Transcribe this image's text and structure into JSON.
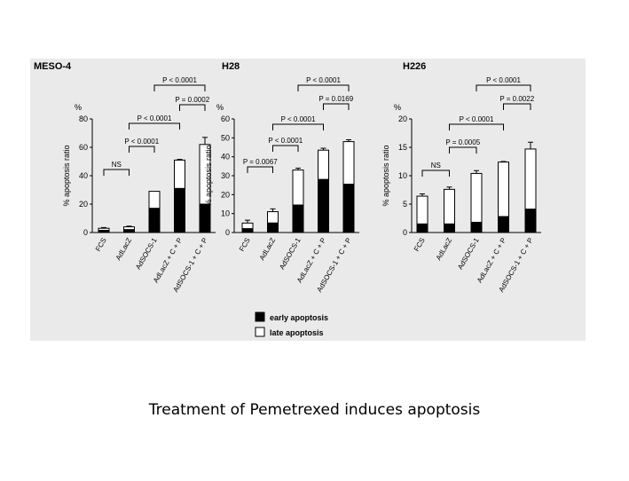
{
  "caption": "Treatment of Pemetrexed induces apoptosis",
  "colors": {
    "panel_background": "#eaeaea",
    "early": "#000000",
    "late": "#ffffff",
    "outline": "#000000"
  },
  "legend": {
    "early_label": "early apoptosis",
    "late_label": "late apoptosis"
  },
  "chart_data": [
    {
      "type": "bar",
      "stacked": true,
      "title": "MESO-4",
      "ylabel": "% apoptosis ratio",
      "unit_label": "%",
      "ylim": [
        0,
        80
      ],
      "yticks": [
        0,
        20,
        40,
        60,
        80
      ],
      "categories": [
        "FCS",
        "AdLacZ",
        "AdSOCS-1",
        "AdLacZ + C + P",
        "AdSOCS-1 + C + P"
      ],
      "series": [
        {
          "name": "early apoptosis",
          "values": [
            1.5,
            2,
            17,
            31,
            20
          ]
        },
        {
          "name": "late apoptosis",
          "values": [
            1.5,
            2,
            12,
            20,
            42
          ]
        }
      ],
      "error": [
        0.5,
        0.5,
        0,
        0.5,
        5
      ],
      "comparisons": [
        {
          "from": 0,
          "to": 1,
          "label": "NS"
        },
        {
          "from": 1,
          "to": 2,
          "label": "P < 0.0001"
        },
        {
          "from": 1,
          "to": 3,
          "label": "P < 0.0001"
        },
        {
          "from": 3,
          "to": 4,
          "label": "P = 0.0002"
        },
        {
          "from": 2,
          "to": 4,
          "label": "P < 0.0001"
        }
      ]
    },
    {
      "type": "bar",
      "stacked": true,
      "title": "H28",
      "ylabel": "% apoptosis ratio",
      "unit_label": "%",
      "ylim": [
        0,
        60
      ],
      "yticks": [
        0,
        10,
        20,
        30,
        40,
        50,
        60
      ],
      "categories": [
        "FCS",
        "AdLacZ",
        "AdSOCS-1",
        "AdLacZ + C + P",
        "AdSOCS-1 + C + P"
      ],
      "series": [
        {
          "name": "early apoptosis",
          "values": [
            2,
            5,
            14.5,
            28,
            25.5
          ]
        },
        {
          "name": "late apoptosis",
          "values": [
            3,
            6,
            18.5,
            15.5,
            22.5
          ]
        }
      ],
      "error": [
        1.5,
        1.5,
        1,
        1,
        1
      ],
      "comparisons": [
        {
          "from": 0,
          "to": 1,
          "label": "P = 0.0067"
        },
        {
          "from": 1,
          "to": 2,
          "label": "P < 0.0001"
        },
        {
          "from": 1,
          "to": 3,
          "label": "P < 0.0001"
        },
        {
          "from": 3,
          "to": 4,
          "label": "P = 0.0169"
        },
        {
          "from": 2,
          "to": 4,
          "label": "P < 0.0001"
        }
      ]
    },
    {
      "type": "bar",
      "stacked": true,
      "title": "H226",
      "ylabel": "% apoptosis ratio",
      "unit_label": "%",
      "ylim": [
        0,
        20
      ],
      "yticks": [
        0,
        5,
        10,
        15,
        20
      ],
      "categories": [
        "FCS",
        "AdLacZ",
        "AdSOCS-1",
        "AdLacZ + C + P",
        "AdSOCS-1 + C + P"
      ],
      "series": [
        {
          "name": "early apoptosis",
          "values": [
            1.5,
            1.5,
            1.8,
            2.8,
            4.1
          ]
        },
        {
          "name": "late apoptosis",
          "values": [
            4.9,
            6.1,
            8.6,
            9.6,
            10.6
          ]
        }
      ],
      "error": [
        0.4,
        0.4,
        0.5,
        0.1,
        1.2
      ],
      "comparisons": [
        {
          "from": 0,
          "to": 1,
          "label": "NS"
        },
        {
          "from": 1,
          "to": 2,
          "label": "P = 0.0005"
        },
        {
          "from": 1,
          "to": 3,
          "label": "P < 0.0001"
        },
        {
          "from": 3,
          "to": 4,
          "label": "P = 0.0022"
        },
        {
          "from": 2,
          "to": 4,
          "label": "P < 0.0001"
        }
      ]
    }
  ]
}
